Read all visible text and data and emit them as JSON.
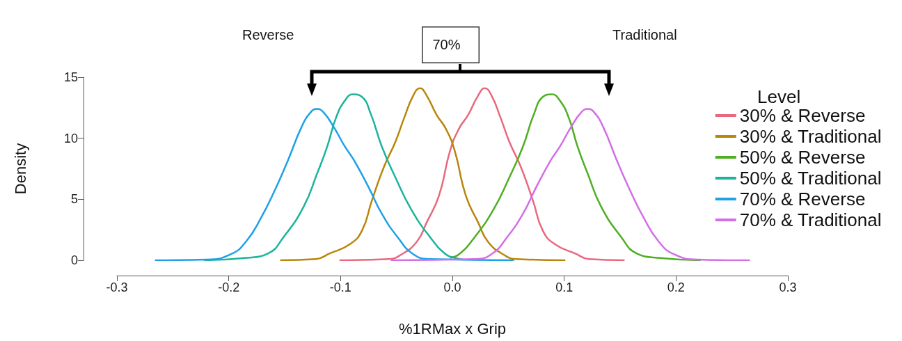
{
  "chart_data": {
    "type": "line",
    "xlabel": "%1RMax x Grip",
    "ylabel": "Density",
    "legend_title": "Level",
    "legend": "right",
    "grid": false,
    "marker": "none",
    "line_style": "solid",
    "xlim": [
      -0.3,
      0.3
    ],
    "xticks": [
      -0.3,
      -0.2,
      -0.1,
      {
        "value": 0,
        "label": "0.0"
      },
      0.1,
      0.2,
      0.3
    ],
    "ylim": [
      0,
      15
    ],
    "yticks": [
      0,
      5,
      10,
      15
    ],
    "annotations": [
      "Reverse",
      "70%",
      "Traditional"
    ],
    "series": [
      {
        "name": "30% & Reverse",
        "color": "#e8697f",
        "x": [
          -0.101,
          -0.057,
          -0.047,
          -0.032,
          -0.023,
          -0.012,
          -0.002,
          0.006,
          0.014,
          0.023,
          0.029,
          0.035,
          0.043,
          0.051,
          0.061,
          0.072,
          0.081,
          0.092,
          0.11,
          0.122,
          0.154
        ],
        "values": [
          0,
          0.1,
          0.4,
          1.5,
          3.1,
          5.3,
          9.0,
          10.8,
          11.9,
          13.5,
          14.1,
          13.5,
          11.7,
          9.7,
          7.7,
          4.9,
          2.4,
          1.3,
          0.55,
          0.1,
          0
        ]
      },
      {
        "name": "30% & Traditional",
        "color": "#b8860b",
        "x": [
          -0.154,
          -0.122,
          -0.11,
          -0.092,
          -0.081,
          -0.072,
          -0.061,
          -0.051,
          -0.043,
          -0.035,
          -0.029,
          -0.023,
          -0.014,
          -0.006,
          0.002,
          0.012,
          0.023,
          0.032,
          0.047,
          0.057,
          0.101
        ],
        "values": [
          0,
          0.1,
          0.55,
          1.3,
          2.4,
          4.9,
          7.7,
          9.7,
          11.7,
          13.5,
          14.1,
          13.5,
          11.9,
          10.8,
          9.0,
          5.3,
          3.1,
          1.5,
          0.4,
          0.1,
          0
        ]
      },
      {
        "name": "50% & Reverse",
        "color": "#4fae23",
        "x": [
          -0.002,
          0.006,
          0.02,
          0.037,
          0.051,
          0.063,
          0.073,
          0.081,
          0.089,
          0.096,
          0.104,
          0.112,
          0.121,
          0.133,
          0.151,
          0.165,
          0.184,
          0.222
        ],
        "values": [
          0.2,
          0.5,
          1.9,
          4.2,
          6.8,
          9.3,
          12.0,
          13.4,
          13.6,
          13.1,
          11.7,
          9.3,
          7.1,
          4.4,
          1.9,
          0.55,
          0.2,
          0
        ]
      },
      {
        "name": "50% & Traditional",
        "color": "#1cb39c",
        "x": [
          -0.222,
          -0.184,
          -0.165,
          -0.151,
          -0.133,
          -0.121,
          -0.112,
          -0.104,
          -0.096,
          -0.089,
          -0.081,
          -0.073,
          -0.063,
          -0.051,
          -0.037,
          -0.02,
          -0.006,
          0.002,
          0.01
        ],
        "values": [
          0,
          0.2,
          0.55,
          1.9,
          4.4,
          7.1,
          9.3,
          11.7,
          13.1,
          13.6,
          13.4,
          12.0,
          9.3,
          6.8,
          4.2,
          1.9,
          0.5,
          0.2,
          0.05
        ]
      },
      {
        "name": "70% & Reverse",
        "color": "#1ea1e6",
        "x": [
          -0.266,
          -0.22,
          -0.198,
          -0.184,
          -0.171,
          -0.159,
          -0.147,
          -0.135,
          -0.127,
          -0.121,
          -0.115,
          -0.106,
          -0.096,
          -0.088,
          -0.075,
          -0.063,
          -0.049,
          -0.035,
          -0.02,
          0.055
        ],
        "values": [
          0,
          0.05,
          0.5,
          1.6,
          3.5,
          5.7,
          8.2,
          10.9,
          12.1,
          12.4,
          12.1,
          10.9,
          9.3,
          8.2,
          6.0,
          3.8,
          1.9,
          0.5,
          0.1,
          0
        ]
      },
      {
        "name": "70% & Traditional",
        "color": "#d36ee6",
        "x": [
          -0.055,
          0.02,
          0.035,
          0.049,
          0.063,
          0.075,
          0.088,
          0.096,
          0.106,
          0.115,
          0.121,
          0.127,
          0.135,
          0.147,
          0.159,
          0.171,
          0.184,
          0.198,
          0.22,
          0.266
        ],
        "values": [
          0,
          0.1,
          0.5,
          1.9,
          3.8,
          6.0,
          8.2,
          9.3,
          10.9,
          12.1,
          12.4,
          12.1,
          10.9,
          8.2,
          5.7,
          3.5,
          1.6,
          0.5,
          0.05,
          0
        ]
      }
    ]
  }
}
